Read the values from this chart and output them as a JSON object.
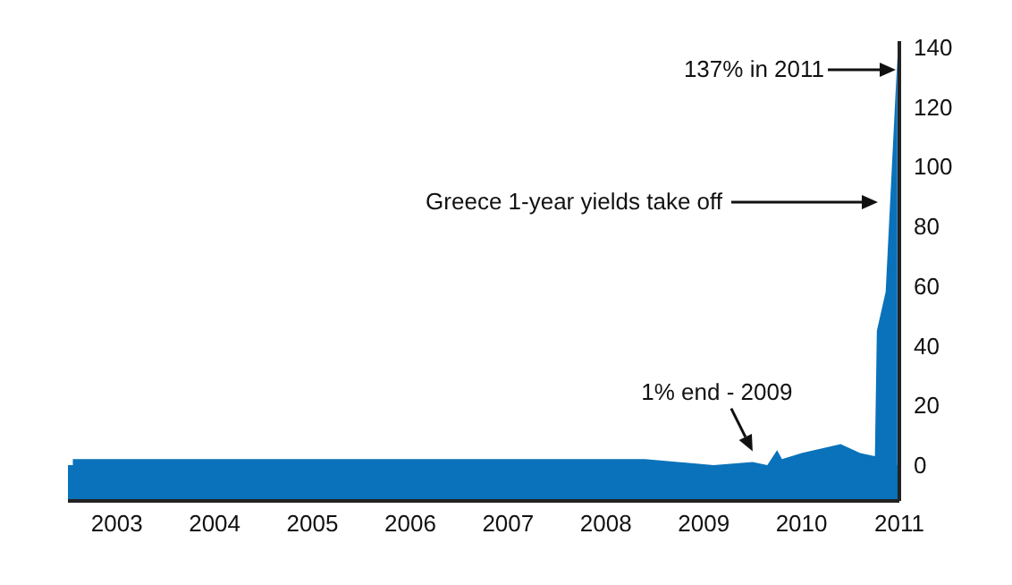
{
  "chart_data": {
    "type": "area",
    "color": "#0a72ba",
    "x": [
      2002.55,
      2008.4,
      2009.1,
      2009.5,
      2009.65,
      2009.75,
      2009.8,
      2010.0,
      2010.4,
      2010.6,
      2010.75,
      2010.77,
      2010.86,
      2010.98
    ],
    "values": [
      2,
      2,
      0,
      1,
      0,
      5,
      2,
      4,
      7,
      4,
      3,
      45,
      58,
      137
    ],
    "xlim": [
      2002.5,
      2011
    ],
    "xticks": [
      2003,
      2004,
      2005,
      2006,
      2007,
      2008,
      2009,
      2010,
      2011
    ],
    "ylim": [
      -12,
      142
    ],
    "yticks": [
      0,
      20,
      40,
      60,
      80,
      100,
      120,
      140
    ],
    "bands": [
      {
        "axis": "y",
        "from": -12,
        "to": 0,
        "color": "#0a72ba"
      }
    ],
    "annotations": [
      "137% in 2011",
      "Greece 1-year yields take off",
      {
        "text": "1% end - 2009",
        "x": 2009.5,
        "y": 1
      }
    ]
  }
}
